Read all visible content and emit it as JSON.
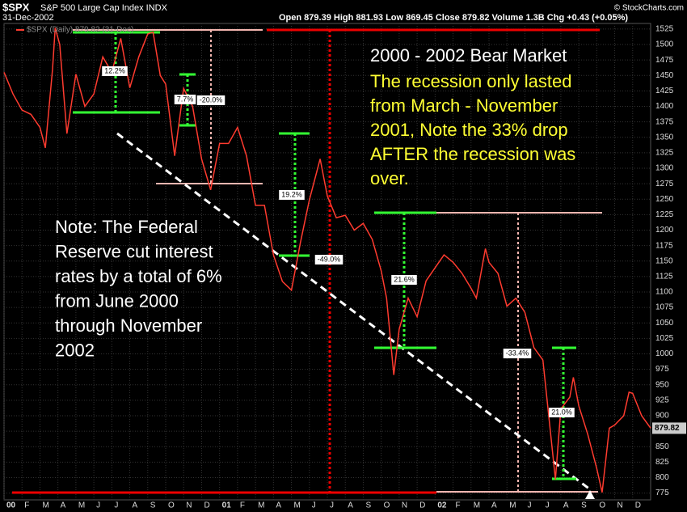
{
  "chart_data": {
    "type": "line",
    "title": "$SPX",
    "subtitle": "S&P 500 Large Cap Index INDX",
    "date": "31-Dec-2002",
    "quote": "Open 879.39  High 881.93  Low 869.45  Close 879.82  Volume 1.3B  Chg +0.43 (+0.05%)",
    "credit": "© StockCharts.com",
    "last_close": 879.82,
    "grid": true,
    "x": [
      0,
      0.5,
      1,
      1.5,
      2,
      2.3,
      2.7,
      2.85,
      3.1,
      3.5,
      4,
      4.5,
      5,
      5.5,
      6,
      6.5,
      7,
      7.5,
      8,
      8.3,
      8.7,
      9,
      9.5,
      10,
      10.5,
      11,
      11.5,
      12,
      12.5,
      13,
      13.5,
      14,
      14.5,
      15,
      15.5,
      16,
      16.5,
      17,
      17.6,
      18,
      18.5,
      19,
      19.5,
      20,
      20.5,
      21,
      21.3,
      21.7,
      22,
      22.5,
      23,
      23.5,
      24,
      24.5,
      25,
      25.5,
      26,
      26.3,
      26.8,
      27,
      27.5,
      28,
      28.5,
      29,
      29.5,
      30,
      30.7,
      31,
      31.5,
      31.7,
      32,
      32.5,
      33,
      33.3,
      33.7,
      34,
      34.5,
      34.8,
      35,
      35.5,
      36
    ],
    "series": [
      {
        "name": "$SPX (Daily) 879.82 (31-Dec)",
        "color": "#ff3b2f",
        "values": [
          1455,
          1420,
          1394,
          1387,
          1366,
          1333,
          1460,
          1527,
          1500,
          1356,
          1452,
          1400,
          1420,
          1480,
          1455,
          1510,
          1430,
          1480,
          1517,
          1520,
          1450,
          1436,
          1320,
          1429,
          1400,
          1315,
          1265,
          1340,
          1340,
          1366,
          1320,
          1240,
          1240,
          1160,
          1117,
          1103,
          1180,
          1249,
          1315,
          1255,
          1220,
          1224,
          1200,
          1211,
          1185,
          1134,
          1090,
          966,
          1040,
          1090,
          1060,
          1118,
          1139,
          1160,
          1148,
          1130,
          1106,
          1090,
          1170,
          1148,
          1130,
          1077,
          1090,
          1067,
          1010,
          990,
          797,
          911,
          930,
          962,
          916,
          870,
          815,
          776,
          880,
          885,
          900,
          938,
          936,
          900,
          880
        ]
      }
    ],
    "xlim": [
      0,
      36
    ],
    "xticks": [
      {
        "value": 0,
        "label": "00"
      },
      {
        "value": 1,
        "label": "F"
      },
      {
        "value": 2,
        "label": "M"
      },
      {
        "value": 3,
        "label": "A"
      },
      {
        "value": 4,
        "label": "M"
      },
      {
        "value": 5,
        "label": "J"
      },
      {
        "value": 6,
        "label": "J"
      },
      {
        "value": 7,
        "label": "A"
      },
      {
        "value": 8,
        "label": "S"
      },
      {
        "value": 9,
        "label": "O"
      },
      {
        "value": 10,
        "label": "N"
      },
      {
        "value": 11,
        "label": "D"
      },
      {
        "value": 12,
        "label": "01"
      },
      {
        "value": 13,
        "label": "F"
      },
      {
        "value": 14,
        "label": "M"
      },
      {
        "value": 15,
        "label": "A"
      },
      {
        "value": 16,
        "label": "M"
      },
      {
        "value": 17,
        "label": "J"
      },
      {
        "value": 18,
        "label": "J"
      },
      {
        "value": 19,
        "label": "A"
      },
      {
        "value": 20,
        "label": "S"
      },
      {
        "value": 21,
        "label": "O"
      },
      {
        "value": 22,
        "label": "N"
      },
      {
        "value": 23,
        "label": "D"
      },
      {
        "value": 24,
        "label": "02"
      },
      {
        "value": 25,
        "label": "F"
      },
      {
        "value": 26,
        "label": "M"
      },
      {
        "value": 27,
        "label": "A"
      },
      {
        "value": 28,
        "label": "M"
      },
      {
        "value": 29,
        "label": "J"
      },
      {
        "value": 30,
        "label": "J"
      },
      {
        "value": 31,
        "label": "A"
      },
      {
        "value": 32,
        "label": "S"
      },
      {
        "value": 33,
        "label": "O"
      },
      {
        "value": 34,
        "label": "N"
      },
      {
        "value": 35,
        "label": "D"
      }
    ],
    "ylim": [
      764,
      1534
    ],
    "yticks": [
      775,
      800,
      825,
      850,
      875,
      900,
      925,
      950,
      975,
      1000,
      1025,
      1050,
      1075,
      1100,
      1125,
      1150,
      1175,
      1200,
      1225,
      1250,
      1275,
      1300,
      1325,
      1350,
      1375,
      1400,
      1425,
      1450,
      1475,
      1500,
      1525
    ],
    "percent_labels": [
      "12.2%",
      "7.7%",
      "-20.0%",
      "19.2%",
      "-49.0%",
      "21.6%",
      "-33.4%",
      "21.0%"
    ],
    "headline": "2000 - 2002 Bear Market",
    "recession_note": [
      "The recession only lasted",
      "from March - November",
      "2001, Note the 33% drop",
      "AFTER the recession was",
      "over."
    ],
    "fed_note": [
      "Note: The Federal",
      "Reserve cut interest",
      "rates by a total of 6%",
      "from June 2000",
      "through November",
      "2002"
    ]
  }
}
